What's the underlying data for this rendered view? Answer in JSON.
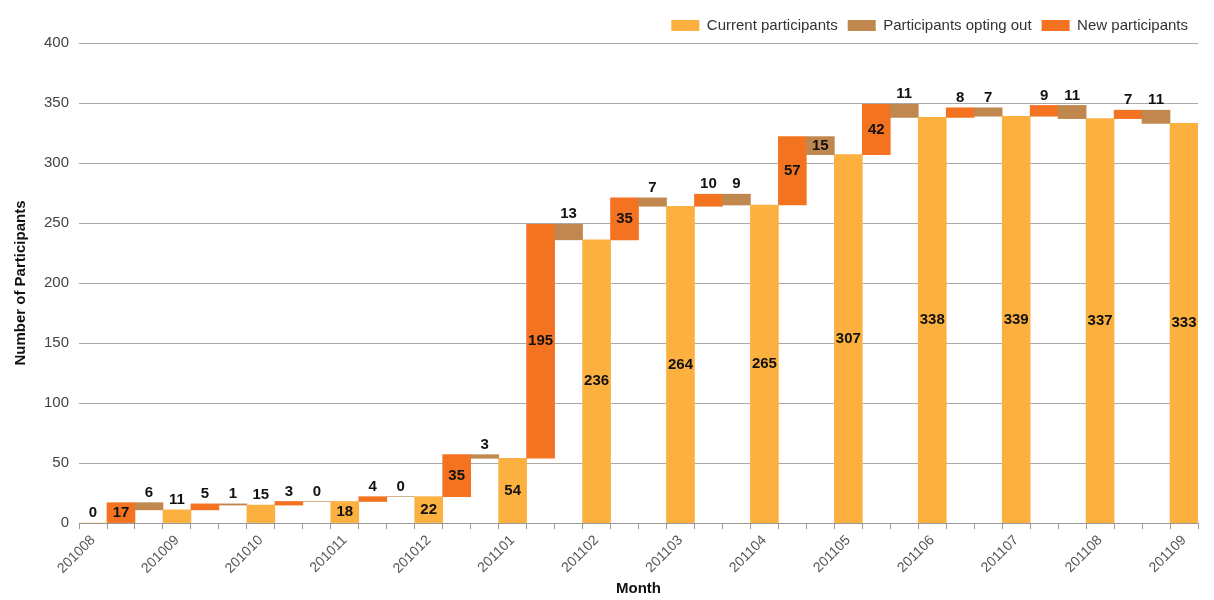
{
  "chart_data": {
    "type": "bar",
    "xlabel": "Month",
    "ylabel": "Number of Participants",
    "categories": [
      "201008",
      null,
      null,
      "201009",
      null,
      null,
      "201010",
      null,
      null,
      "201011",
      null,
      null,
      "201012",
      null,
      null,
      "201101",
      null,
      null,
      "201102",
      null,
      null,
      "201103",
      null,
      null,
      "201104",
      null,
      null,
      "201105",
      null,
      null,
      "201106",
      null,
      null,
      "201107",
      null,
      null,
      "201108",
      null,
      null,
      "201109"
    ],
    "series": [
      {
        "name": "Current participants",
        "color": "#fbb040",
        "values": [
          0,
          null,
          null,
          11,
          null,
          null,
          15,
          null,
          null,
          18,
          null,
          null,
          22,
          null,
          null,
          54,
          null,
          null,
          236,
          null,
          null,
          264,
          null,
          null,
          265,
          null,
          null,
          307,
          null,
          null,
          338,
          null,
          null,
          339,
          null,
          null,
          337,
          null,
          null,
          333
        ]
      },
      {
        "name": "Participants opting out",
        "color": "#c0874f",
        "values": [
          null,
          null,
          6,
          null,
          null,
          1,
          null,
          null,
          0,
          null,
          null,
          0,
          null,
          null,
          3,
          null,
          null,
          13,
          null,
          null,
          7,
          null,
          null,
          9,
          null,
          null,
          15,
          null,
          null,
          11,
          null,
          null,
          7,
          null,
          null,
          11,
          null,
          null,
          11,
          null
        ],
        "base": [
          null,
          null,
          11,
          null,
          null,
          15,
          null,
          null,
          18,
          null,
          null,
          22,
          null,
          null,
          54,
          null,
          null,
          236,
          null,
          null,
          264,
          null,
          null,
          265,
          null,
          null,
          307,
          null,
          null,
          338,
          null,
          null,
          339,
          null,
          null,
          337,
          null,
          null,
          333,
          null
        ]
      },
      {
        "name": "New participants",
        "color": "#f47321",
        "values": [
          null,
          17,
          null,
          null,
          5,
          null,
          null,
          3,
          null,
          null,
          4,
          null,
          null,
          35,
          null,
          null,
          195,
          null,
          null,
          35,
          null,
          null,
          10,
          null,
          null,
          57,
          null,
          null,
          42,
          null,
          null,
          8,
          null,
          null,
          9,
          null,
          null,
          7,
          null,
          null
        ],
        "base": [
          null,
          0,
          null,
          null,
          11,
          null,
          null,
          15,
          null,
          null,
          18,
          null,
          null,
          22,
          null,
          null,
          54,
          null,
          null,
          236,
          null,
          null,
          264,
          null,
          null,
          265,
          null,
          null,
          307,
          null,
          null,
          338,
          null,
          null,
          339,
          null,
          null,
          337,
          null,
          null
        ]
      }
    ],
    "ylim": [
      0,
      400
    ],
    "yticks": [
      0,
      50,
      100,
      150,
      200,
      250,
      300,
      350,
      400
    ],
    "grid": "y",
    "legend": "top right",
    "data_labels": true
  }
}
